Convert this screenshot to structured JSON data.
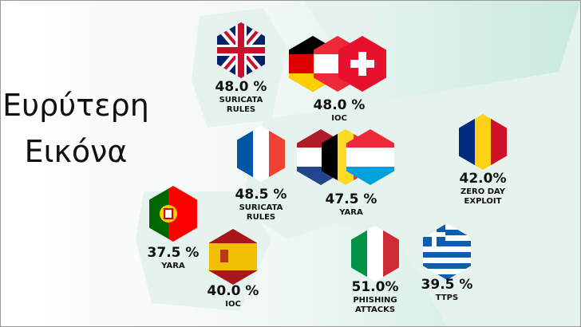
{
  "title_lines": [
    "Ευρύτερη",
    "Εικόνα"
  ],
  "items": [
    {
      "value": "48.0 %",
      "label": [
        "SURICATA",
        "RULES"
      ]
    },
    {
      "value": "48.0 %",
      "label": [
        "IOC"
      ]
    },
    {
      "value": "42.0%",
      "label": [
        "ZERO DAY",
        "EXPLOIT"
      ]
    },
    {
      "value": "48.5 %",
      "label": [
        "SURICATA",
        "RULES"
      ]
    },
    {
      "value": "47.5 %",
      "label": [
        "YARA"
      ]
    },
    {
      "value": "37.5 %",
      "label": [
        "YARA"
      ]
    },
    {
      "value": "40.0 %",
      "label": [
        "IOC"
      ]
    },
    {
      "value": "51.0%",
      "label": [
        "PHISHING",
        "ATTACKS"
      ]
    },
    {
      "value": "39.5 %",
      "label": [
        "TTPS"
      ]
    }
  ]
}
